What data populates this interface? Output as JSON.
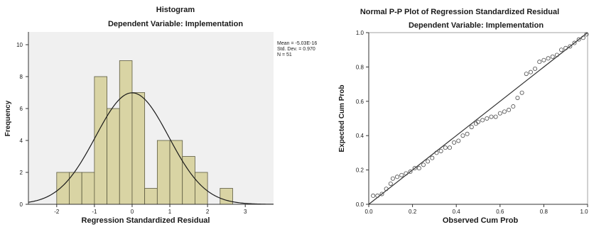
{
  "chart_data": [
    {
      "type": "bar",
      "title": "Histogram",
      "subtitle": "Dependent Variable: Implementation",
      "xlabel": "Regression Standardized Residual",
      "ylabel": "Frequency",
      "xlim": [
        -2.75,
        3.75
      ],
      "ylim": [
        0,
        10.8
      ],
      "x_ticks": [
        "-2",
        "-1",
        "0",
        "1",
        "2",
        "3"
      ],
      "y_ticks": [
        "0",
        "2",
        "4",
        "6",
        "8",
        "10"
      ],
      "bin_width": 0.333,
      "bins": [
        {
          "x_start": -2.0,
          "count": 2
        },
        {
          "x_start": -1.667,
          "count": 2
        },
        {
          "x_start": -1.333,
          "count": 2
        },
        {
          "x_start": -1.0,
          "count": 8
        },
        {
          "x_start": -0.667,
          "count": 6
        },
        {
          "x_start": -0.333,
          "count": 9
        },
        {
          "x_start": 0.0,
          "count": 7
        },
        {
          "x_start": 0.333,
          "count": 1
        },
        {
          "x_start": 0.667,
          "count": 4
        },
        {
          "x_start": 1.0,
          "count": 4
        },
        {
          "x_start": 1.333,
          "count": 3
        },
        {
          "x_start": 1.667,
          "count": 2
        },
        {
          "x_start": 2.333,
          "count": 1
        }
      ],
      "normal_curve": {
        "mean": 0,
        "sd": 0.97,
        "n": 51
      },
      "stats": [
        "Mean = -5.03E-16",
        "Std. Dev. = 0.970",
        "N = 51"
      ],
      "colors": {
        "bar_fill": "#d9d4a4",
        "bar_stroke": "#5c5a40",
        "plot_bg": "#f0f0f0",
        "curve": "#1a1a1a"
      },
      "grid": false,
      "legend": "none"
    },
    {
      "type": "scatter",
      "title": "Normal P-P Plot of Regression Standardized Residual",
      "subtitle": "Dependent Variable: Implementation",
      "xlabel": "Observed Cum Prob",
      "ylabel": "Expected Cum Prob",
      "xlim": [
        0,
        1
      ],
      "ylim": [
        0,
        1
      ],
      "x_ticks": [
        "0.0",
        "0.2",
        "0.4",
        "0.6",
        "0.8",
        "1.0"
      ],
      "y_ticks": [
        "0.0",
        "0.2",
        "0.4",
        "0.6",
        "0.8",
        "1.0"
      ],
      "reference_line": [
        [
          0,
          0
        ],
        [
          1,
          1
        ]
      ],
      "points": [
        [
          0.02,
          0.05
        ],
        [
          0.04,
          0.05
        ],
        [
          0.06,
          0.06
        ],
        [
          0.08,
          0.09
        ],
        [
          0.1,
          0.12
        ],
        [
          0.11,
          0.15
        ],
        [
          0.13,
          0.16
        ],
        [
          0.15,
          0.17
        ],
        [
          0.17,
          0.18
        ],
        [
          0.19,
          0.19
        ],
        [
          0.21,
          0.21
        ],
        [
          0.23,
          0.21
        ],
        [
          0.25,
          0.23
        ],
        [
          0.27,
          0.25
        ],
        [
          0.29,
          0.27
        ],
        [
          0.31,
          0.3
        ],
        [
          0.33,
          0.31
        ],
        [
          0.35,
          0.33
        ],
        [
          0.37,
          0.33
        ],
        [
          0.39,
          0.36
        ],
        [
          0.41,
          0.37
        ],
        [
          0.43,
          0.4
        ],
        [
          0.45,
          0.41
        ],
        [
          0.47,
          0.45
        ],
        [
          0.49,
          0.47
        ],
        [
          0.5,
          0.48
        ],
        [
          0.52,
          0.49
        ],
        [
          0.54,
          0.5
        ],
        [
          0.56,
          0.51
        ],
        [
          0.58,
          0.51
        ],
        [
          0.6,
          0.53
        ],
        [
          0.62,
          0.54
        ],
        [
          0.64,
          0.55
        ],
        [
          0.66,
          0.57
        ],
        [
          0.68,
          0.62
        ],
        [
          0.7,
          0.65
        ],
        [
          0.72,
          0.76
        ],
        [
          0.74,
          0.77
        ],
        [
          0.76,
          0.79
        ],
        [
          0.78,
          0.83
        ],
        [
          0.8,
          0.84
        ],
        [
          0.82,
          0.85
        ],
        [
          0.84,
          0.86
        ],
        [
          0.86,
          0.87
        ],
        [
          0.88,
          0.9
        ],
        [
          0.9,
          0.91
        ],
        [
          0.92,
          0.92
        ],
        [
          0.94,
          0.94
        ],
        [
          0.96,
          0.96
        ],
        [
          0.98,
          0.97
        ],
        [
          0.995,
          0.99
        ]
      ],
      "colors": {
        "marker": "#4a4a4a",
        "reference_line": "#333333",
        "plot_bg": "#ffffff"
      },
      "grid": false,
      "legend": "none"
    }
  ]
}
